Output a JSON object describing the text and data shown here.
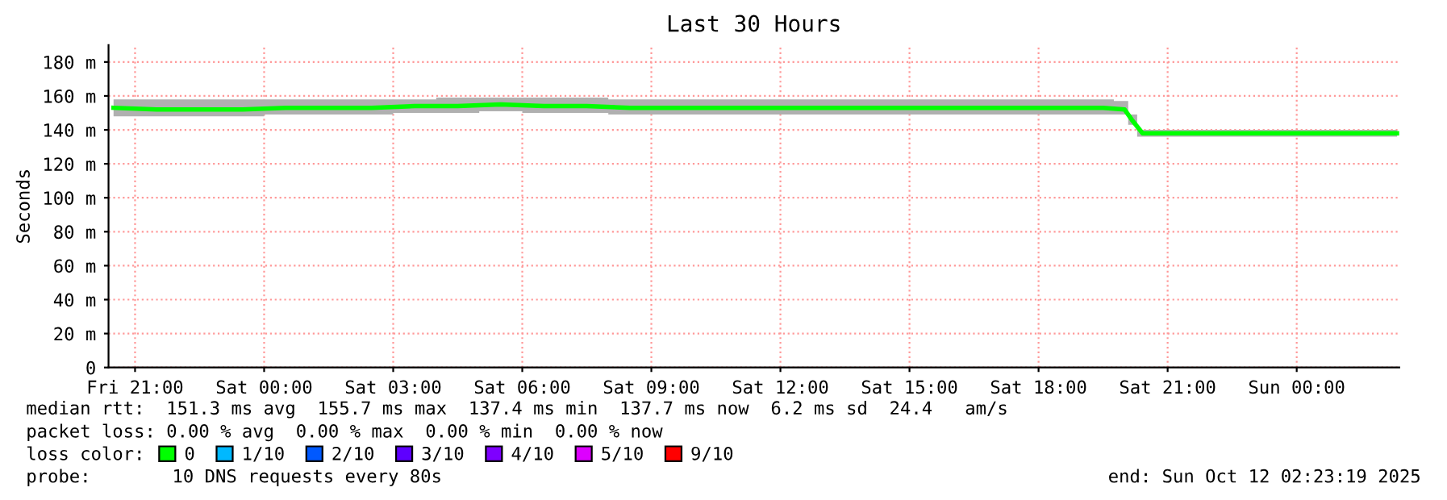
{
  "chart_data": {
    "type": "line",
    "title": "Last 30 Hours",
    "ylabel": "Seconds",
    "legend_title": "loss color:",
    "x": [
      "2025-10-10T20:30",
      "2025-10-10T21:30",
      "2025-10-10T22:30",
      "2025-10-10T23:30",
      "2025-10-11T00:30",
      "2025-10-11T01:30",
      "2025-10-11T02:30",
      "2025-10-11T03:30",
      "2025-10-11T04:30",
      "2025-10-11T05:30",
      "2025-10-11T06:30",
      "2025-10-11T07:30",
      "2025-10-11T08:30",
      "2025-10-11T09:30",
      "2025-10-11T10:30",
      "2025-10-11T11:30",
      "2025-10-11T12:30",
      "2025-10-11T13:30",
      "2025-10-11T14:30",
      "2025-10-11T15:30",
      "2025-10-11T16:30",
      "2025-10-11T17:30",
      "2025-10-11T18:30",
      "2025-10-11T19:30",
      "2025-10-11T20:00",
      "2025-10-11T20:10",
      "2025-10-11T20:25",
      "2025-10-11T21:30",
      "2025-10-11T22:30",
      "2025-10-11T23:30",
      "2025-10-12T00:30",
      "2025-10-12T01:30",
      "2025-10-12T02:20"
    ],
    "series": [
      {
        "name": "0",
        "color": "#00ff00",
        "values": [
          153,
          152,
          152,
          152,
          153,
          153,
          153,
          154,
          154,
          155,
          154,
          154,
          153,
          153,
          153,
          153,
          153,
          153,
          153,
          153,
          153,
          153,
          153,
          153,
          152,
          146,
          138,
          138,
          138,
          138,
          138,
          138,
          138
        ],
        "lower": [
          148,
          148,
          148,
          148,
          149,
          149,
          149,
          150,
          150,
          151,
          150,
          150,
          149,
          149,
          149,
          149,
          149,
          149,
          149,
          149,
          149,
          149,
          149,
          149,
          149,
          143,
          136,
          136,
          136,
          136,
          136,
          136,
          136
        ],
        "upper": [
          158,
          158,
          158,
          158,
          158,
          158,
          158,
          158,
          159,
          159,
          159,
          159,
          158,
          158,
          158,
          158,
          158,
          158,
          158,
          158,
          158,
          158,
          158,
          158,
          157,
          149,
          140,
          140,
          140,
          140,
          140,
          140,
          140
        ]
      },
      {
        "name": "1/10",
        "color": "#00b8ff",
        "values": [
          null,
          null,
          null,
          null,
          null,
          null,
          null,
          null,
          null,
          null,
          null,
          null,
          null,
          null,
          null,
          null,
          null,
          null,
          null,
          null,
          null,
          null,
          null,
          null,
          null,
          null,
          null,
          null,
          null,
          null,
          null,
          null,
          null
        ]
      },
      {
        "name": "2/10",
        "color": "#0059ff",
        "values": [
          null,
          null,
          null,
          null,
          null,
          null,
          null,
          null,
          null,
          null,
          null,
          null,
          null,
          null,
          null,
          null,
          null,
          null,
          null,
          null,
          null,
          null,
          null,
          null,
          null,
          null,
          null,
          null,
          null,
          null,
          null,
          null,
          null
        ]
      },
      {
        "name": "3/10",
        "color": "#5e00ff",
        "values": [
          null,
          null,
          null,
          null,
          null,
          null,
          null,
          null,
          null,
          null,
          null,
          null,
          null,
          null,
          null,
          null,
          null,
          null,
          null,
          null,
          null,
          null,
          null,
          null,
          null,
          null,
          null,
          null,
          null,
          null,
          null,
          null,
          null
        ]
      },
      {
        "name": "4/10",
        "color": "#7e00ff",
        "values": [
          null,
          null,
          null,
          null,
          null,
          null,
          null,
          null,
          null,
          null,
          null,
          null,
          null,
          null,
          null,
          null,
          null,
          null,
          null,
          null,
          null,
          null,
          null,
          null,
          null,
          null,
          null,
          null,
          null,
          null,
          null,
          null,
          null
        ]
      },
      {
        "name": "5/10",
        "color": "#dd00ff",
        "values": [
          null,
          null,
          null,
          null,
          null,
          null,
          null,
          null,
          null,
          null,
          null,
          null,
          null,
          null,
          null,
          null,
          null,
          null,
          null,
          null,
          null,
          null,
          null,
          null,
          null,
          null,
          null,
          null,
          null,
          null,
          null,
          null,
          null
        ]
      },
      {
        "name": "9/10",
        "color": "#ff0000",
        "values": [
          null,
          null,
          null,
          null,
          null,
          null,
          null,
          null,
          null,
          null,
          null,
          null,
          null,
          null,
          null,
          null,
          null,
          null,
          null,
          null,
          null,
          null,
          null,
          null,
          null,
          null,
          null,
          null,
          null,
          null,
          null,
          null,
          null
        ]
      }
    ],
    "xlim": [
      "2025-10-10T20:23",
      "2025-10-12T02:23"
    ],
    "xticks": [
      {
        "value": "2025-10-10T21:00",
        "label": "Fri 21:00"
      },
      {
        "value": "2025-10-11T00:00",
        "label": "Sat 00:00"
      },
      {
        "value": "2025-10-11T03:00",
        "label": "Sat 03:00"
      },
      {
        "value": "2025-10-11T06:00",
        "label": "Sat 06:00"
      },
      {
        "value": "2025-10-11T09:00",
        "label": "Sat 09:00"
      },
      {
        "value": "2025-10-11T12:00",
        "label": "Sat 12:00"
      },
      {
        "value": "2025-10-11T15:00",
        "label": "Sat 15:00"
      },
      {
        "value": "2025-10-11T18:00",
        "label": "Sat 18:00"
      },
      {
        "value": "2025-10-11T21:00",
        "label": "Sat 21:00"
      },
      {
        "value": "2025-10-12T00:00",
        "label": "Sun 00:00"
      }
    ],
    "ylim": [
      0,
      190
    ],
    "yticks": [
      0,
      {
        "value": 20,
        "label": "20 m"
      },
      {
        "value": 40,
        "label": "40 m"
      },
      {
        "value": 60,
        "label": "60 m"
      },
      {
        "value": 80,
        "label": "80 m"
      },
      {
        "value": 100,
        "label": "100 m"
      },
      {
        "value": 120,
        "label": "120 m"
      },
      {
        "value": 140,
        "label": "140 m"
      },
      {
        "value": 160,
        "label": "160 m"
      },
      {
        "value": 180,
        "label": "180 m"
      }
    ],
    "grid": true,
    "legend": "bottom left",
    "marker": "none",
    "line_style": "solid",
    "annotations": [
      "median rtt:  151.3 ms avg  155.7 ms max  137.4 ms min  137.7 ms now  6.2 ms sd  24.4   am/s",
      "packet loss: 0.00 % avg  0.00 % max  0.00 % min  0.00 % now",
      "probe:",
      "10 DNS requests every 80s",
      "end: Sun Oct 12 02:23:19 2025"
    ]
  }
}
